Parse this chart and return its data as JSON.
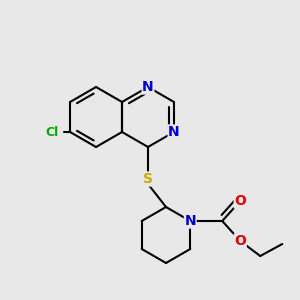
{
  "background_color": "#e8e8e8",
  "atom_colors": {
    "N": "#0000cc",
    "S": "#ccaa00",
    "O": "#dd0000",
    "Cl": "#00aa00",
    "C": "#000000"
  },
  "bond_color": "#000000",
  "bond_lw": 1.5,
  "figsize": [
    3.0,
    3.0
  ],
  "dpi": 100
}
